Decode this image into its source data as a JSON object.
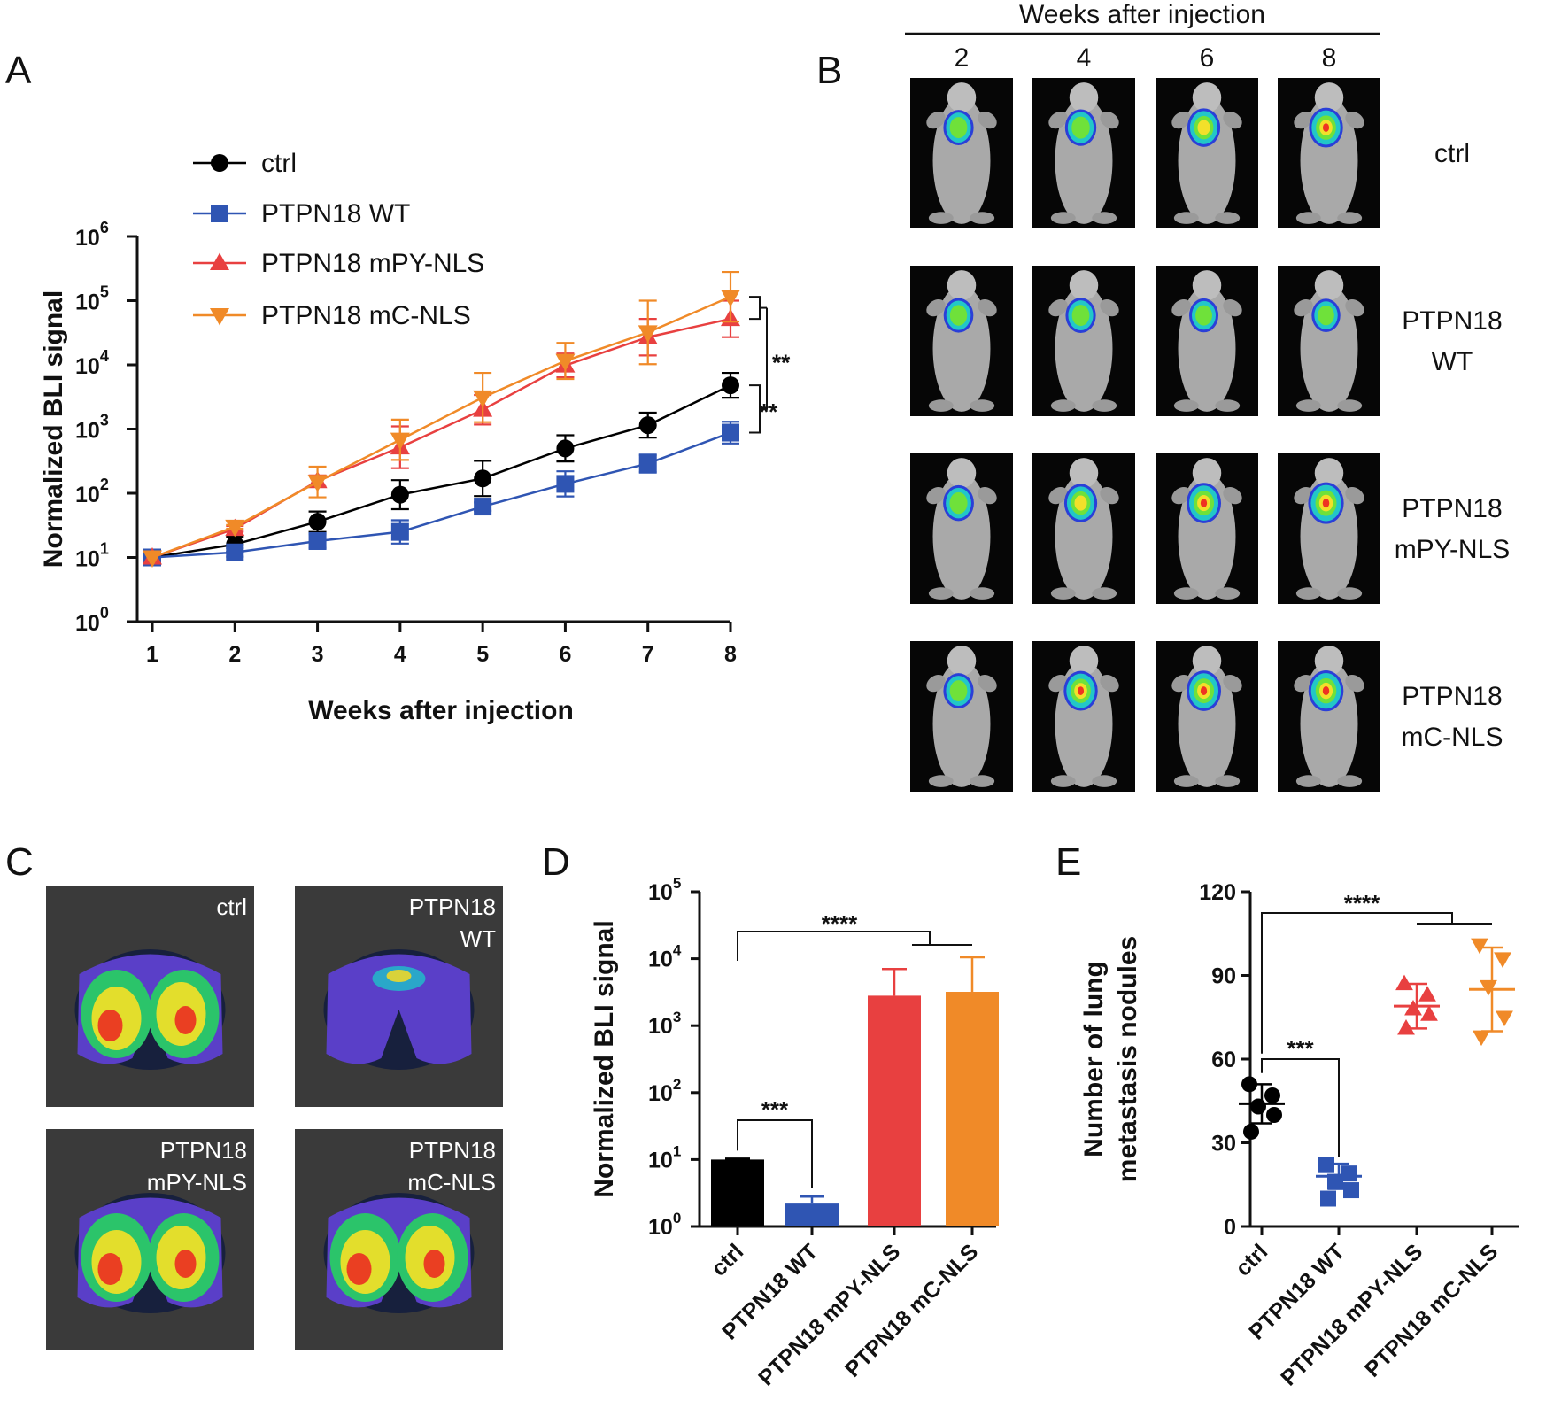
{
  "panel_letters": [
    "A",
    "B",
    "C",
    "D",
    "E"
  ],
  "colors": {
    "ctrl": "#000000",
    "wt": "#2f55b3",
    "mpy": "#e84040",
    "mc": "#f08a28"
  },
  "chart_data": [
    {
      "panel": "A",
      "type": "line",
      "xlabel": "Weeks after injection",
      "ylabel": "Normalized BLI signal",
      "x": [
        1,
        2,
        3,
        4,
        5,
        6,
        7,
        8
      ],
      "x_ticks": [
        "1",
        "2",
        "3",
        "4",
        "5",
        "6",
        "7",
        "8"
      ],
      "y_scale": "log",
      "ylim": [
        1,
        1000000
      ],
      "y_tick_bases": [
        "10",
        "10",
        "10",
        "10",
        "10",
        "10",
        "10"
      ],
      "y_tick_exps": [
        "0",
        "1",
        "2",
        "3",
        "4",
        "5",
        "6"
      ],
      "series": [
        {
          "name": "ctrl",
          "marker": "circle",
          "values": [
            10,
            16,
            36,
            95,
            170,
            500,
            1150,
            4800
          ],
          "err_up": [
            10,
            21,
            52,
            160,
            320,
            800,
            1800,
            7500
          ]
        },
        {
          "name": "PTPN18 WT",
          "marker": "square",
          "values": [
            10,
            12,
            18,
            25,
            62,
            140,
            290,
            880
          ],
          "err_up": [
            10,
            14,
            23,
            38,
            72,
            220,
            400,
            1300
          ]
        },
        {
          "name": "PTPN18 mPY-NLS",
          "marker": "triangle-up",
          "values": [
            10,
            28,
            155,
            520,
            2000,
            9800,
            27000,
            52000
          ],
          "err_up": [
            10,
            31,
            190,
            1100,
            3400,
            15000,
            52000,
            100000
          ]
        },
        {
          "name": "PTPN18 mC-NLS",
          "marker": "triangle-down",
          "values": [
            10,
            30,
            150,
            680,
            3100,
            11500,
            32000,
            115000
          ],
          "err_up": [
            10,
            32,
            260,
            1400,
            7500,
            22000,
            100000,
            280000
          ]
        }
      ],
      "significance": [
        "**",
        "**"
      ]
    },
    {
      "panel": "D",
      "type": "bar",
      "ylabel": "Normalized BLI signal",
      "categories": [
        "ctrl",
        "PTPN18 WT",
        "PTPN18 mPY-NLS",
        "PTPN18 mC-NLS"
      ],
      "values": [
        10,
        2.2,
        2800,
        3200
      ],
      "err_up": [
        10.3,
        2.8,
        7000,
        10500
      ],
      "y_scale": "log",
      "ylim": [
        1,
        100000
      ],
      "y_tick_bases": [
        "10",
        "10",
        "10",
        "10",
        "10",
        "10"
      ],
      "y_tick_exps": [
        "0",
        "1",
        "2",
        "3",
        "4",
        "5"
      ],
      "significance": [
        "****",
        "***"
      ]
    },
    {
      "panel": "E",
      "type": "scatter",
      "ylabel": "Number of lung metastasis nodules",
      "ylabel_lines": [
        "Number of lung",
        "metastasis nodules"
      ],
      "categories": [
        "ctrl",
        "PTPN18 WT",
        "PTPN18 mPY-NLS",
        "PTPN18 mC-NLS"
      ],
      "points": [
        [
          51,
          47,
          43,
          40,
          34
        ],
        [
          22,
          19,
          16,
          13,
          10
        ],
        [
          87,
          83,
          78,
          76,
          71
        ],
        [
          101,
          96,
          86,
          75,
          68
        ]
      ],
      "means": [
        44,
        18,
        79,
        85
      ],
      "sd": [
        7,
        4.5,
        8,
        15
      ],
      "ylim": [
        0,
        120
      ],
      "y_ticks": [
        "0",
        "30",
        "60",
        "90",
        "120"
      ],
      "significance": [
        "****",
        "***"
      ]
    }
  ],
  "panelB": {
    "top_label": "Weeks after injection",
    "week_labels": [
      "2",
      "4",
      "6",
      "8"
    ],
    "row_labels": [
      [
        "ctrl"
      ],
      [
        "PTPN18",
        "WT"
      ],
      [
        "PTPN18",
        "mPY-NLS"
      ],
      [
        "PTPN18",
        "mC-NLS"
      ]
    ],
    "signal_intensity": [
      [
        0.35,
        0.45,
        0.6,
        0.7
      ],
      [
        0.3,
        0.35,
        0.25,
        0.2
      ],
      [
        0.4,
        0.6,
        0.75,
        0.85
      ],
      [
        0.35,
        0.7,
        0.75,
        0.8
      ]
    ]
  },
  "panelC": {
    "labels": [
      [
        "ctrl"
      ],
      [
        "PTPN18",
        "WT"
      ],
      [
        "PTPN18",
        "mPY-NLS"
      ],
      [
        "PTPN18",
        "mC-NLS"
      ]
    ]
  }
}
